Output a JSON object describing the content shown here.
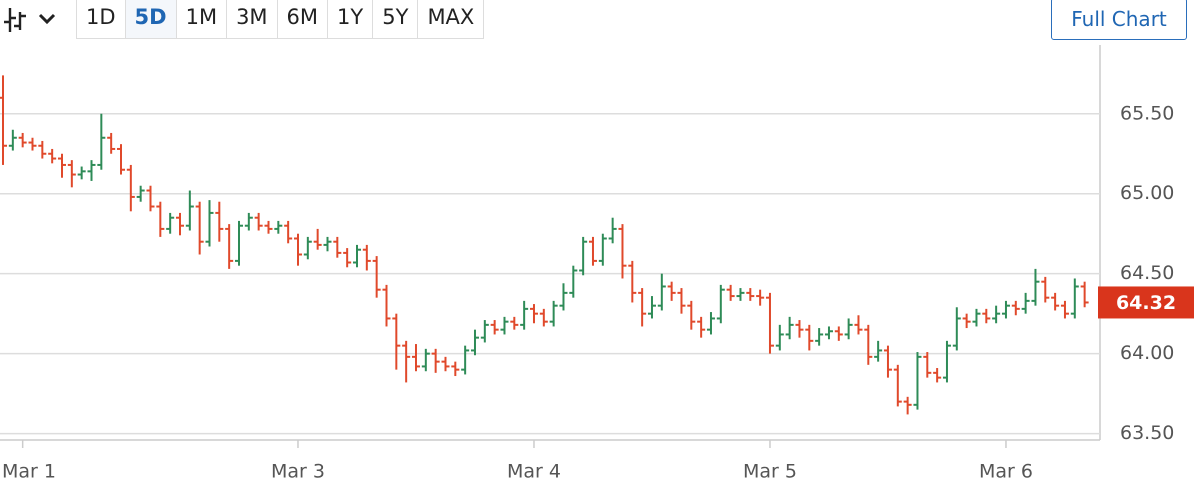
{
  "toolbar": {
    "ranges": [
      "1D",
      "5D",
      "1M",
      "3M",
      "6M",
      "1Y",
      "5Y",
      "MAX"
    ],
    "selected_range": 1,
    "full_chart": "Full Chart"
  },
  "chart_data": {
    "type": "ohlc",
    "categories": [
      null,
      null,
      "Mar 1",
      null,
      null,
      null,
      null,
      null,
      null,
      null,
      null,
      null,
      null,
      null,
      null,
      null,
      null,
      null,
      null,
      null,
      null,
      null,
      null,
      null,
      null,
      null,
      null,
      null,
      null,
      null,
      "Mar 3",
      null,
      null,
      null,
      null,
      null,
      null,
      null,
      null,
      null,
      null,
      null,
      null,
      null,
      null,
      null,
      null,
      null,
      null,
      null,
      null,
      null,
      null,
      null,
      "Mar 4",
      null,
      null,
      null,
      null,
      null,
      null,
      null,
      null,
      null,
      null,
      null,
      null,
      null,
      null,
      null,
      null,
      null,
      null,
      null,
      null,
      null,
      null,
      null,
      "Mar 5",
      null,
      null,
      null,
      null,
      null,
      null,
      null,
      null,
      null,
      null,
      null,
      null,
      null,
      null,
      null,
      null,
      null,
      null,
      null,
      null,
      null,
      null,
      null,
      "Mar 6",
      null,
      null,
      null,
      null,
      null,
      null,
      null,
      null
    ],
    "open": [
      65.6,
      65.3,
      65.35,
      65.32,
      65.3,
      65.25,
      65.22,
      65.18,
      65.12,
      65.14,
      65.18,
      65.35,
      65.28,
      65.15,
      64.98,
      65.02,
      64.92,
      64.78,
      64.85,
      64.8,
      64.92,
      64.7,
      64.88,
      64.78,
      64.58,
      64.8,
      64.85,
      64.8,
      64.78,
      64.8,
      64.72,
      64.62,
      64.7,
      64.68,
      64.7,
      64.63,
      64.57,
      64.65,
      64.58,
      64.4,
      64.22,
      64.05,
      63.98,
      63.92,
      64.0,
      63.95,
      63.92,
      63.9,
      64.02,
      64.1,
      64.18,
      64.15,
      64.2,
      64.18,
      64.28,
      64.25,
      64.2,
      64.3,
      64.38,
      64.52,
      64.7,
      64.58,
      64.72,
      64.78,
      64.55,
      64.38,
      64.25,
      64.3,
      64.42,
      64.38,
      64.3,
      64.2,
      64.15,
      64.22,
      64.4,
      64.36,
      64.38,
      64.36,
      64.35,
      64.05,
      64.12,
      64.18,
      64.15,
      64.08,
      64.12,
      64.14,
      64.12,
      64.18,
      64.15,
      63.98,
      64.02,
      63.9,
      63.7,
      63.68,
      63.98,
      63.88,
      63.85,
      64.05,
      64.22,
      64.2,
      64.25,
      64.22,
      64.25,
      64.3,
      64.28,
      64.33,
      64.45,
      64.35,
      64.3,
      64.25,
      64.42
    ],
    "high": [
      65.74,
      65.4,
      65.38,
      65.35,
      65.33,
      65.28,
      65.25,
      65.21,
      65.17,
      65.21,
      65.5,
      65.38,
      65.31,
      65.18,
      65.05,
      65.05,
      64.95,
      64.88,
      64.88,
      65.02,
      64.95,
      64.96,
      64.95,
      64.81,
      64.83,
      64.88,
      64.88,
      64.83,
      64.83,
      64.83,
      64.75,
      64.73,
      64.78,
      64.73,
      64.73,
      64.66,
      64.68,
      64.68,
      64.61,
      64.43,
      64.25,
      64.08,
      64.06,
      64.03,
      64.03,
      63.98,
      63.95,
      64.05,
      64.15,
      64.21,
      64.21,
      64.23,
      64.23,
      64.33,
      64.31,
      64.28,
      64.33,
      64.44,
      64.55,
      64.73,
      64.73,
      64.75,
      64.85,
      64.81,
      64.58,
      64.41,
      64.36,
      64.5,
      64.45,
      64.41,
      64.33,
      64.23,
      64.26,
      64.43,
      64.43,
      64.41,
      64.41,
      64.4,
      64.38,
      64.18,
      64.23,
      64.21,
      64.18,
      64.16,
      64.17,
      64.17,
      64.22,
      64.24,
      64.18,
      64.08,
      64.05,
      63.93,
      63.73,
      64.01,
      64.01,
      63.91,
      64.08,
      64.29,
      64.25,
      64.28,
      64.28,
      64.3,
      64.33,
      64.33,
      64.38,
      64.53,
      64.48,
      64.38,
      64.33,
      64.47,
      64.45
    ],
    "low": [
      65.18,
      65.27,
      65.29,
      65.27,
      65.22,
      65.19,
      65.1,
      65.04,
      65.09,
      65.08,
      65.15,
      65.25,
      65.12,
      64.89,
      64.95,
      64.89,
      64.73,
      64.75,
      64.74,
      64.77,
      64.62,
      64.67,
      64.7,
      64.53,
      64.55,
      64.77,
      64.77,
      64.75,
      64.75,
      64.69,
      64.55,
      64.59,
      64.65,
      64.64,
      64.6,
      64.54,
      64.54,
      64.52,
      64.35,
      64.17,
      63.9,
      63.82,
      63.89,
      63.89,
      63.88,
      63.89,
      63.86,
      63.87,
      63.99,
      64.07,
      64.12,
      64.12,
      64.15,
      64.15,
      64.19,
      64.17,
      64.17,
      64.27,
      64.35,
      64.49,
      64.55,
      64.55,
      64.69,
      64.47,
      64.32,
      64.17,
      64.22,
      64.27,
      64.33,
      64.25,
      64.15,
      64.1,
      64.12,
      64.19,
      64.33,
      64.33,
      64.33,
      64.3,
      64.0,
      64.02,
      64.09,
      64.1,
      64.02,
      64.05,
      64.09,
      64.08,
      64.09,
      64.12,
      63.93,
      63.95,
      63.85,
      63.67,
      63.62,
      63.65,
      63.85,
      63.82,
      63.82,
      64.02,
      64.16,
      64.17,
      64.19,
      64.19,
      64.22,
      64.24,
      64.25,
      64.3,
      64.32,
      64.27,
      64.22,
      64.22,
      64.29
    ],
    "close": [
      65.3,
      65.35,
      65.32,
      65.3,
      65.25,
      65.22,
      65.18,
      65.12,
      65.14,
      65.18,
      65.35,
      65.28,
      65.15,
      64.98,
      65.02,
      64.92,
      64.78,
      64.85,
      64.8,
      64.92,
      64.7,
      64.88,
      64.78,
      64.58,
      64.8,
      64.85,
      64.8,
      64.78,
      64.8,
      64.72,
      64.62,
      64.7,
      64.68,
      64.7,
      64.63,
      64.57,
      64.65,
      64.58,
      64.4,
      64.22,
      64.05,
      63.98,
      63.92,
      64.0,
      63.95,
      63.92,
      63.9,
      64.02,
      64.1,
      64.18,
      64.15,
      64.2,
      64.18,
      64.28,
      64.25,
      64.2,
      64.3,
      64.38,
      64.52,
      64.7,
      64.58,
      64.72,
      64.78,
      64.55,
      64.38,
      64.25,
      64.3,
      64.42,
      64.38,
      64.3,
      64.2,
      64.15,
      64.22,
      64.4,
      64.36,
      64.38,
      64.36,
      64.35,
      64.05,
      64.12,
      64.18,
      64.15,
      64.08,
      64.12,
      64.14,
      64.12,
      64.18,
      64.15,
      63.98,
      64.02,
      63.9,
      63.7,
      63.68,
      63.98,
      63.88,
      63.85,
      64.05,
      64.22,
      64.2,
      64.25,
      64.22,
      64.25,
      64.3,
      64.28,
      64.33,
      64.45,
      64.35,
      64.3,
      64.25,
      64.42,
      64.32
    ],
    "up_color": "#2e8b57",
    "down_color": "#e0492b",
    "last_price_color": "#d9351c",
    "ylim": [
      63.46,
      65.93
    ],
    "yticks": [
      {
        "value": 63.5,
        "label": "63.50"
      },
      {
        "value": 64,
        "label": "64.00"
      },
      {
        "value": 64.5,
        "label": "64.50"
      },
      {
        "value": 65,
        "label": "65.00"
      },
      {
        "value": 65.5,
        "label": "65.50"
      }
    ],
    "grid": true
  }
}
